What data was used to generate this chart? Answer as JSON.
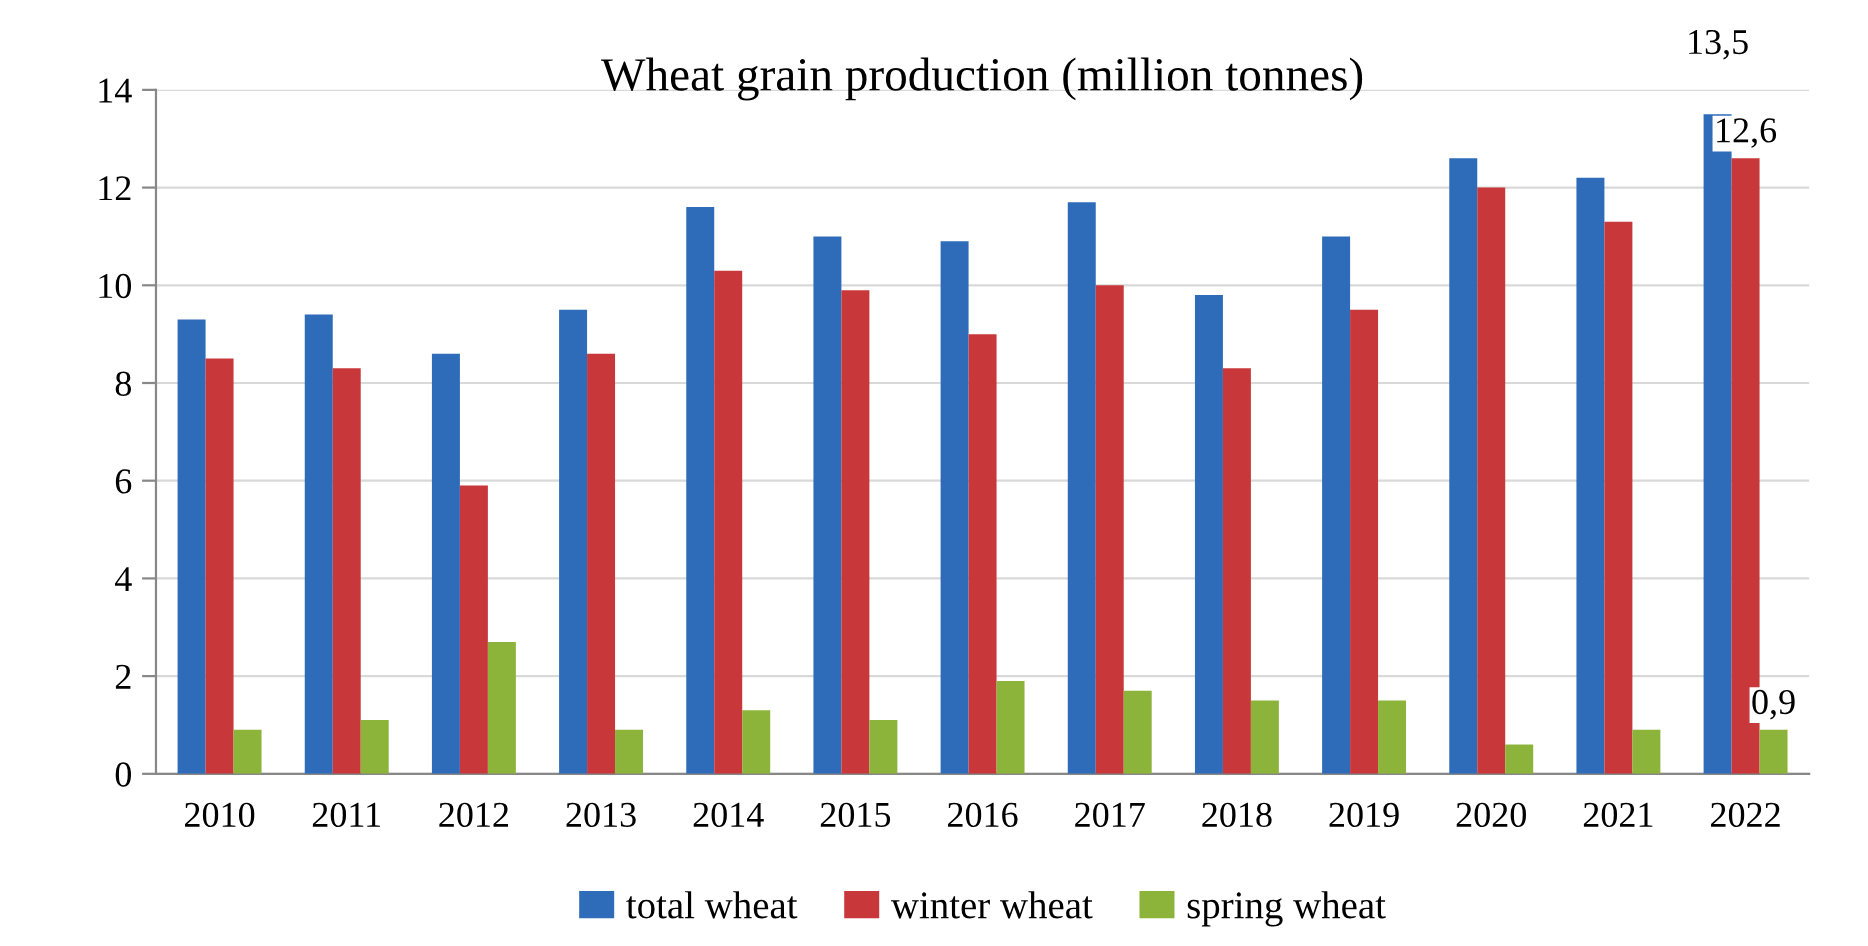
{
  "chart_data": {
    "type": "bar",
    "title": "Wheat grain production (million tonnes)",
    "categories": [
      "2010",
      "2011",
      "2012",
      "2013",
      "2014",
      "2015",
      "2016",
      "2017",
      "2018",
      "2019",
      "2020",
      "2021",
      "2022"
    ],
    "series": [
      {
        "name": "total wheat",
        "color": "#2e6bb8",
        "values": [
          9.3,
          9.4,
          8.6,
          9.5,
          11.6,
          11.0,
          10.9,
          11.7,
          9.8,
          11.0,
          12.6,
          12.2,
          13.5
        ],
        "value_labels": [
          null,
          null,
          null,
          null,
          null,
          null,
          null,
          null,
          null,
          null,
          null,
          null,
          "13,5"
        ]
      },
      {
        "name": "winter wheat",
        "color": "#c8373a",
        "values": [
          8.5,
          8.3,
          5.9,
          8.6,
          10.3,
          9.9,
          9.0,
          10.0,
          8.3,
          9.5,
          12.0,
          11.3,
          12.6
        ],
        "value_labels": [
          null,
          null,
          null,
          null,
          null,
          null,
          null,
          null,
          null,
          null,
          null,
          null,
          "12,6"
        ]
      },
      {
        "name": "spring wheat",
        "color": "#8cb33a",
        "values": [
          0.9,
          1.1,
          2.7,
          0.9,
          1.3,
          1.1,
          1.9,
          1.7,
          1.5,
          1.5,
          0.6,
          0.9,
          0.9
        ],
        "value_labels": [
          null,
          null,
          null,
          null,
          null,
          null,
          null,
          null,
          null,
          null,
          null,
          null,
          "0,9"
        ]
      }
    ],
    "ylim": [
      0,
      14
    ],
    "yticks": [
      0,
      2,
      4,
      6,
      8,
      10,
      12,
      14
    ],
    "grid": "y",
    "legend": "bottom"
  }
}
